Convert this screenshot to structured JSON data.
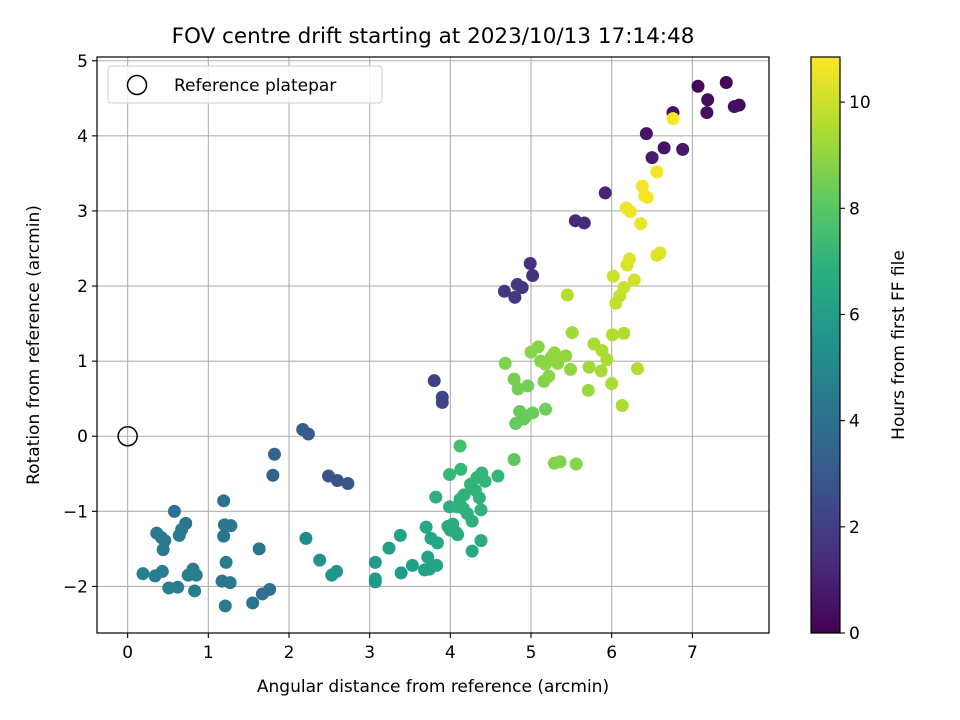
{
  "chart_data": {
    "type": "scatter",
    "title": "FOV centre drift starting at 2023/10/13 17:14:48",
    "xlabel": "Angular distance from reference (arcmin)",
    "ylabel": "Rotation from reference (arcmin)",
    "xlim": [
      -0.38,
      7.95
    ],
    "ylim": [
      -2.62,
      5.05
    ],
    "xticks": [
      0,
      1,
      2,
      3,
      4,
      5,
      6,
      7
    ],
    "yticks": [
      -2,
      -1,
      0,
      1,
      2,
      3,
      4,
      5
    ],
    "grid": true,
    "colormap": "viridis",
    "colorbar": {
      "label": "Hours from first FF file",
      "range": [
        0,
        10.85
      ],
      "ticks": [
        0,
        2,
        4,
        6,
        8,
        10
      ]
    },
    "legend": {
      "placement": "top-left",
      "entries": [
        {
          "name": "Reference platepar",
          "marker": "open-circle"
        }
      ]
    },
    "reference_point": {
      "x": 0,
      "y": 0
    },
    "points": [
      {
        "x": 7.42,
        "y": 4.71,
        "h": 0.1
      },
      {
        "x": 7.07,
        "y": 4.66,
        "h": 0.2
      },
      {
        "x": 7.19,
        "y": 4.48,
        "h": 0.3
      },
      {
        "x": 7.58,
        "y": 4.41,
        "h": 0.3
      },
      {
        "x": 7.52,
        "y": 4.39,
        "h": 0.4
      },
      {
        "x": 7.18,
        "y": 4.31,
        "h": 0.4
      },
      {
        "x": 6.76,
        "y": 4.31,
        "h": 0.5
      },
      {
        "x": 6.43,
        "y": 4.03,
        "h": 0.6
      },
      {
        "x": 6.65,
        "y": 3.84,
        "h": 0.6
      },
      {
        "x": 6.88,
        "y": 3.82,
        "h": 0.7
      },
      {
        "x": 6.5,
        "y": 3.71,
        "h": 0.8
      },
      {
        "x": 5.92,
        "y": 3.24,
        "h": 1.1
      },
      {
        "x": 5.55,
        "y": 2.87,
        "h": 1.3
      },
      {
        "x": 5.66,
        "y": 2.84,
        "h": 1.3
      },
      {
        "x": 4.99,
        "y": 2.3,
        "h": 1.6
      },
      {
        "x": 5.02,
        "y": 2.14,
        "h": 1.6
      },
      {
        "x": 4.83,
        "y": 2.02,
        "h": 1.7
      },
      {
        "x": 4.89,
        "y": 1.98,
        "h": 1.7
      },
      {
        "x": 4.67,
        "y": 1.93,
        "h": 1.8
      },
      {
        "x": 4.8,
        "y": 1.85,
        "h": 1.8
      },
      {
        "x": 3.8,
        "y": 0.74,
        "h": 2.1
      },
      {
        "x": 3.9,
        "y": 0.52,
        "h": 2.2
      },
      {
        "x": 3.9,
        "y": 0.45,
        "h": 2.2
      },
      {
        "x": 2.49,
        "y": -0.53,
        "h": 2.8
      },
      {
        "x": 2.6,
        "y": -0.59,
        "h": 2.8
      },
      {
        "x": 2.73,
        "y": -0.63,
        "h": 2.9
      },
      {
        "x": 2.17,
        "y": 0.09,
        "h": 3.2
      },
      {
        "x": 2.24,
        "y": 0.03,
        "h": 3.2
      },
      {
        "x": 1.82,
        "y": -0.24,
        "h": 3.4
      },
      {
        "x": 1.8,
        "y": -0.52,
        "h": 3.4
      },
      {
        "x": 1.63,
        "y": -1.5,
        "h": 4.1
      },
      {
        "x": 1.76,
        "y": -2.04,
        "h": 4.0
      },
      {
        "x": 1.67,
        "y": -2.1,
        "h": 4.0
      },
      {
        "x": 1.55,
        "y": -2.22,
        "h": 4.1
      },
      {
        "x": 1.21,
        "y": -2.26,
        "h": 4.5
      },
      {
        "x": 1.17,
        "y": -1.93,
        "h": 4.4
      },
      {
        "x": 1.27,
        "y": -1.95,
        "h": 4.4
      },
      {
        "x": 1.22,
        "y": -1.68,
        "h": 4.6
      },
      {
        "x": 1.19,
        "y": -1.33,
        "h": 4.2
      },
      {
        "x": 1.2,
        "y": -1.18,
        "h": 4.2
      },
      {
        "x": 1.28,
        "y": -1.19,
        "h": 4.3
      },
      {
        "x": 1.19,
        "y": -0.86,
        "h": 4.1
      },
      {
        "x": 0.83,
        "y": -2.06,
        "h": 4.7
      },
      {
        "x": 0.85,
        "y": -1.85,
        "h": 4.6
      },
      {
        "x": 0.81,
        "y": -1.77,
        "h": 4.6
      },
      {
        "x": 0.75,
        "y": -1.85,
        "h": 4.7
      },
      {
        "x": 0.72,
        "y": -1.16,
        "h": 4.2
      },
      {
        "x": 0.67,
        "y": -1.24,
        "h": 4.3
      },
      {
        "x": 0.64,
        "y": -1.32,
        "h": 4.4
      },
      {
        "x": 0.58,
        "y": -1.0,
        "h": 4.1
      },
      {
        "x": 0.62,
        "y": -2.01,
        "h": 4.6
      },
      {
        "x": 0.51,
        "y": -2.02,
        "h": 4.7
      },
      {
        "x": 0.43,
        "y": -1.8,
        "h": 4.6
      },
      {
        "x": 0.34,
        "y": -1.86,
        "h": 4.6
      },
      {
        "x": 0.19,
        "y": -1.83,
        "h": 4.7
      },
      {
        "x": 0.44,
        "y": -1.51,
        "h": 4.4
      },
      {
        "x": 0.42,
        "y": -1.35,
        "h": 4.3
      },
      {
        "x": 0.46,
        "y": -1.39,
        "h": 4.3
      },
      {
        "x": 0.36,
        "y": -1.29,
        "h": 4.3
      },
      {
        "x": 2.21,
        "y": -1.36,
        "h": 5.3
      },
      {
        "x": 2.38,
        "y": -1.65,
        "h": 5.5
      },
      {
        "x": 2.53,
        "y": -1.85,
        "h": 5.6
      },
      {
        "x": 2.59,
        "y": -1.8,
        "h": 5.6
      },
      {
        "x": 3.07,
        "y": -1.9,
        "h": 5.9
      },
      {
        "x": 3.07,
        "y": -1.94,
        "h": 5.9
      },
      {
        "x": 3.07,
        "y": -1.68,
        "h": 6.0
      },
      {
        "x": 3.24,
        "y": -1.49,
        "h": 6.1
      },
      {
        "x": 3.38,
        "y": -1.32,
        "h": 6.2
      },
      {
        "x": 3.39,
        "y": -1.82,
        "h": 6.0
      },
      {
        "x": 3.53,
        "y": -1.72,
        "h": 6.1
      },
      {
        "x": 3.68,
        "y": -1.78,
        "h": 6.2
      },
      {
        "x": 3.72,
        "y": -1.61,
        "h": 6.3
      },
      {
        "x": 3.74,
        "y": -1.77,
        "h": 6.2
      },
      {
        "x": 3.83,
        "y": -1.72,
        "h": 6.3
      },
      {
        "x": 3.7,
        "y": -1.21,
        "h": 6.5
      },
      {
        "x": 3.76,
        "y": -1.36,
        "h": 6.4
      },
      {
        "x": 3.84,
        "y": -1.42,
        "h": 6.4
      },
      {
        "x": 3.82,
        "y": -0.81,
        "h": 6.8
      },
      {
        "x": 3.97,
        "y": -1.2,
        "h": 6.6
      },
      {
        "x": 4.0,
        "y": -1.25,
        "h": 6.6
      },
      {
        "x": 4.03,
        "y": -1.17,
        "h": 6.7
      },
      {
        "x": 4.07,
        "y": -1.28,
        "h": 6.7
      },
      {
        "x": 4.09,
        "y": -1.31,
        "h": 6.6
      },
      {
        "x": 3.99,
        "y": -0.94,
        "h": 6.8
      },
      {
        "x": 4.08,
        "y": -0.94,
        "h": 6.9
      },
      {
        "x": 4.12,
        "y": -0.84,
        "h": 6.9
      },
      {
        "x": 4.17,
        "y": -0.78,
        "h": 7.0
      },
      {
        "x": 4.16,
        "y": -0.96,
        "h": 6.9
      },
      {
        "x": 4.21,
        "y": -1.03,
        "h": 6.9
      },
      {
        "x": 4.27,
        "y": -1.13,
        "h": 6.8
      },
      {
        "x": 4.27,
        "y": -1.53,
        "h": 6.5
      },
      {
        "x": 4.38,
        "y": -1.39,
        "h": 6.6
      },
      {
        "x": 4.25,
        "y": -0.64,
        "h": 7.1
      },
      {
        "x": 4.31,
        "y": -0.72,
        "h": 7.0
      },
      {
        "x": 4.36,
        "y": -0.82,
        "h": 7.0
      },
      {
        "x": 4.38,
        "y": -0.98,
        "h": 6.9
      },
      {
        "x": 4.33,
        "y": -0.55,
        "h": 7.1
      },
      {
        "x": 4.39,
        "y": -0.49,
        "h": 7.2
      },
      {
        "x": 4.43,
        "y": -0.6,
        "h": 7.1
      },
      {
        "x": 4.59,
        "y": -0.53,
        "h": 7.2
      },
      {
        "x": 3.99,
        "y": -0.51,
        "h": 7.3
      },
      {
        "x": 4.13,
        "y": -0.44,
        "h": 7.3
      },
      {
        "x": 4.12,
        "y": -0.13,
        "h": 7.6
      },
      {
        "x": 4.79,
        "y": -0.31,
        "h": 8.1
      },
      {
        "x": 4.81,
        "y": 0.17,
        "h": 8.3
      },
      {
        "x": 4.86,
        "y": 0.33,
        "h": 8.3
      },
      {
        "x": 4.94,
        "y": 0.27,
        "h": 8.4
      },
      {
        "x": 5.02,
        "y": 0.31,
        "h": 8.4
      },
      {
        "x": 4.91,
        "y": 0.23,
        "h": 8.3
      },
      {
        "x": 5.18,
        "y": 0.36,
        "h": 8.5
      },
      {
        "x": 4.84,
        "y": 0.63,
        "h": 8.5
      },
      {
        "x": 4.79,
        "y": 0.76,
        "h": 8.6
      },
      {
        "x": 4.96,
        "y": 0.67,
        "h": 8.5
      },
      {
        "x": 4.68,
        "y": 0.97,
        "h": 8.7
      },
      {
        "x": 5.0,
        "y": 1.12,
        "h": 8.9
      },
      {
        "x": 5.09,
        "y": 1.19,
        "h": 8.9
      },
      {
        "x": 5.12,
        "y": 1.0,
        "h": 8.9
      },
      {
        "x": 5.16,
        "y": 0.73,
        "h": 8.8
      },
      {
        "x": 5.22,
        "y": 0.8,
        "h": 8.9
      },
      {
        "x": 5.18,
        "y": 0.96,
        "h": 9.0
      },
      {
        "x": 5.25,
        "y": 1.05,
        "h": 9.0
      },
      {
        "x": 5.29,
        "y": 1.11,
        "h": 9.1
      },
      {
        "x": 5.33,
        "y": 0.97,
        "h": 9.0
      },
      {
        "x": 5.29,
        "y": -0.36,
        "h": 8.8
      },
      {
        "x": 5.36,
        "y": -0.34,
        "h": 8.8
      },
      {
        "x": 5.56,
        "y": -0.37,
        "h": 8.9
      },
      {
        "x": 5.43,
        "y": 1.07,
        "h": 9.1
      },
      {
        "x": 5.51,
        "y": 1.38,
        "h": 9.3
      },
      {
        "x": 5.49,
        "y": 0.89,
        "h": 9.1
      },
      {
        "x": 5.45,
        "y": 1.88,
        "h": 9.6
      },
      {
        "x": 5.71,
        "y": 0.61,
        "h": 9.2
      },
      {
        "x": 5.72,
        "y": 0.92,
        "h": 9.3
      },
      {
        "x": 5.78,
        "y": 1.23,
        "h": 9.4
      },
      {
        "x": 5.87,
        "y": 0.87,
        "h": 9.4
      },
      {
        "x": 5.88,
        "y": 1.14,
        "h": 9.5
      },
      {
        "x": 5.94,
        "y": 1.02,
        "h": 9.5
      },
      {
        "x": 6.0,
        "y": 0.7,
        "h": 9.5
      },
      {
        "x": 6.01,
        "y": 1.35,
        "h": 9.6
      },
      {
        "x": 6.15,
        "y": 1.37,
        "h": 9.6
      },
      {
        "x": 6.13,
        "y": 0.41,
        "h": 9.5
      },
      {
        "x": 6.32,
        "y": 0.9,
        "h": 9.6
      },
      {
        "x": 6.05,
        "y": 1.77,
        "h": 9.9
      },
      {
        "x": 6.1,
        "y": 1.87,
        "h": 9.9
      },
      {
        "x": 6.15,
        "y": 1.98,
        "h": 10.0
      },
      {
        "x": 6.28,
        "y": 2.08,
        "h": 10.1
      },
      {
        "x": 6.02,
        "y": 2.13,
        "h": 10.1
      },
      {
        "x": 6.19,
        "y": 2.28,
        "h": 10.2
      },
      {
        "x": 6.22,
        "y": 2.36,
        "h": 10.3
      },
      {
        "x": 6.56,
        "y": 2.41,
        "h": 10.3
      },
      {
        "x": 6.6,
        "y": 2.44,
        "h": 10.3
      },
      {
        "x": 6.36,
        "y": 2.83,
        "h": 10.5
      },
      {
        "x": 6.18,
        "y": 3.04,
        "h": 10.6
      },
      {
        "x": 6.23,
        "y": 2.99,
        "h": 10.6
      },
      {
        "x": 6.41,
        "y": 3.2,
        "h": 10.6
      },
      {
        "x": 6.44,
        "y": 3.18,
        "h": 10.7
      },
      {
        "x": 6.38,
        "y": 3.33,
        "h": 10.7
      },
      {
        "x": 6.56,
        "y": 3.52,
        "h": 10.7
      },
      {
        "x": 6.76,
        "y": 4.23,
        "h": 10.8
      }
    ]
  }
}
